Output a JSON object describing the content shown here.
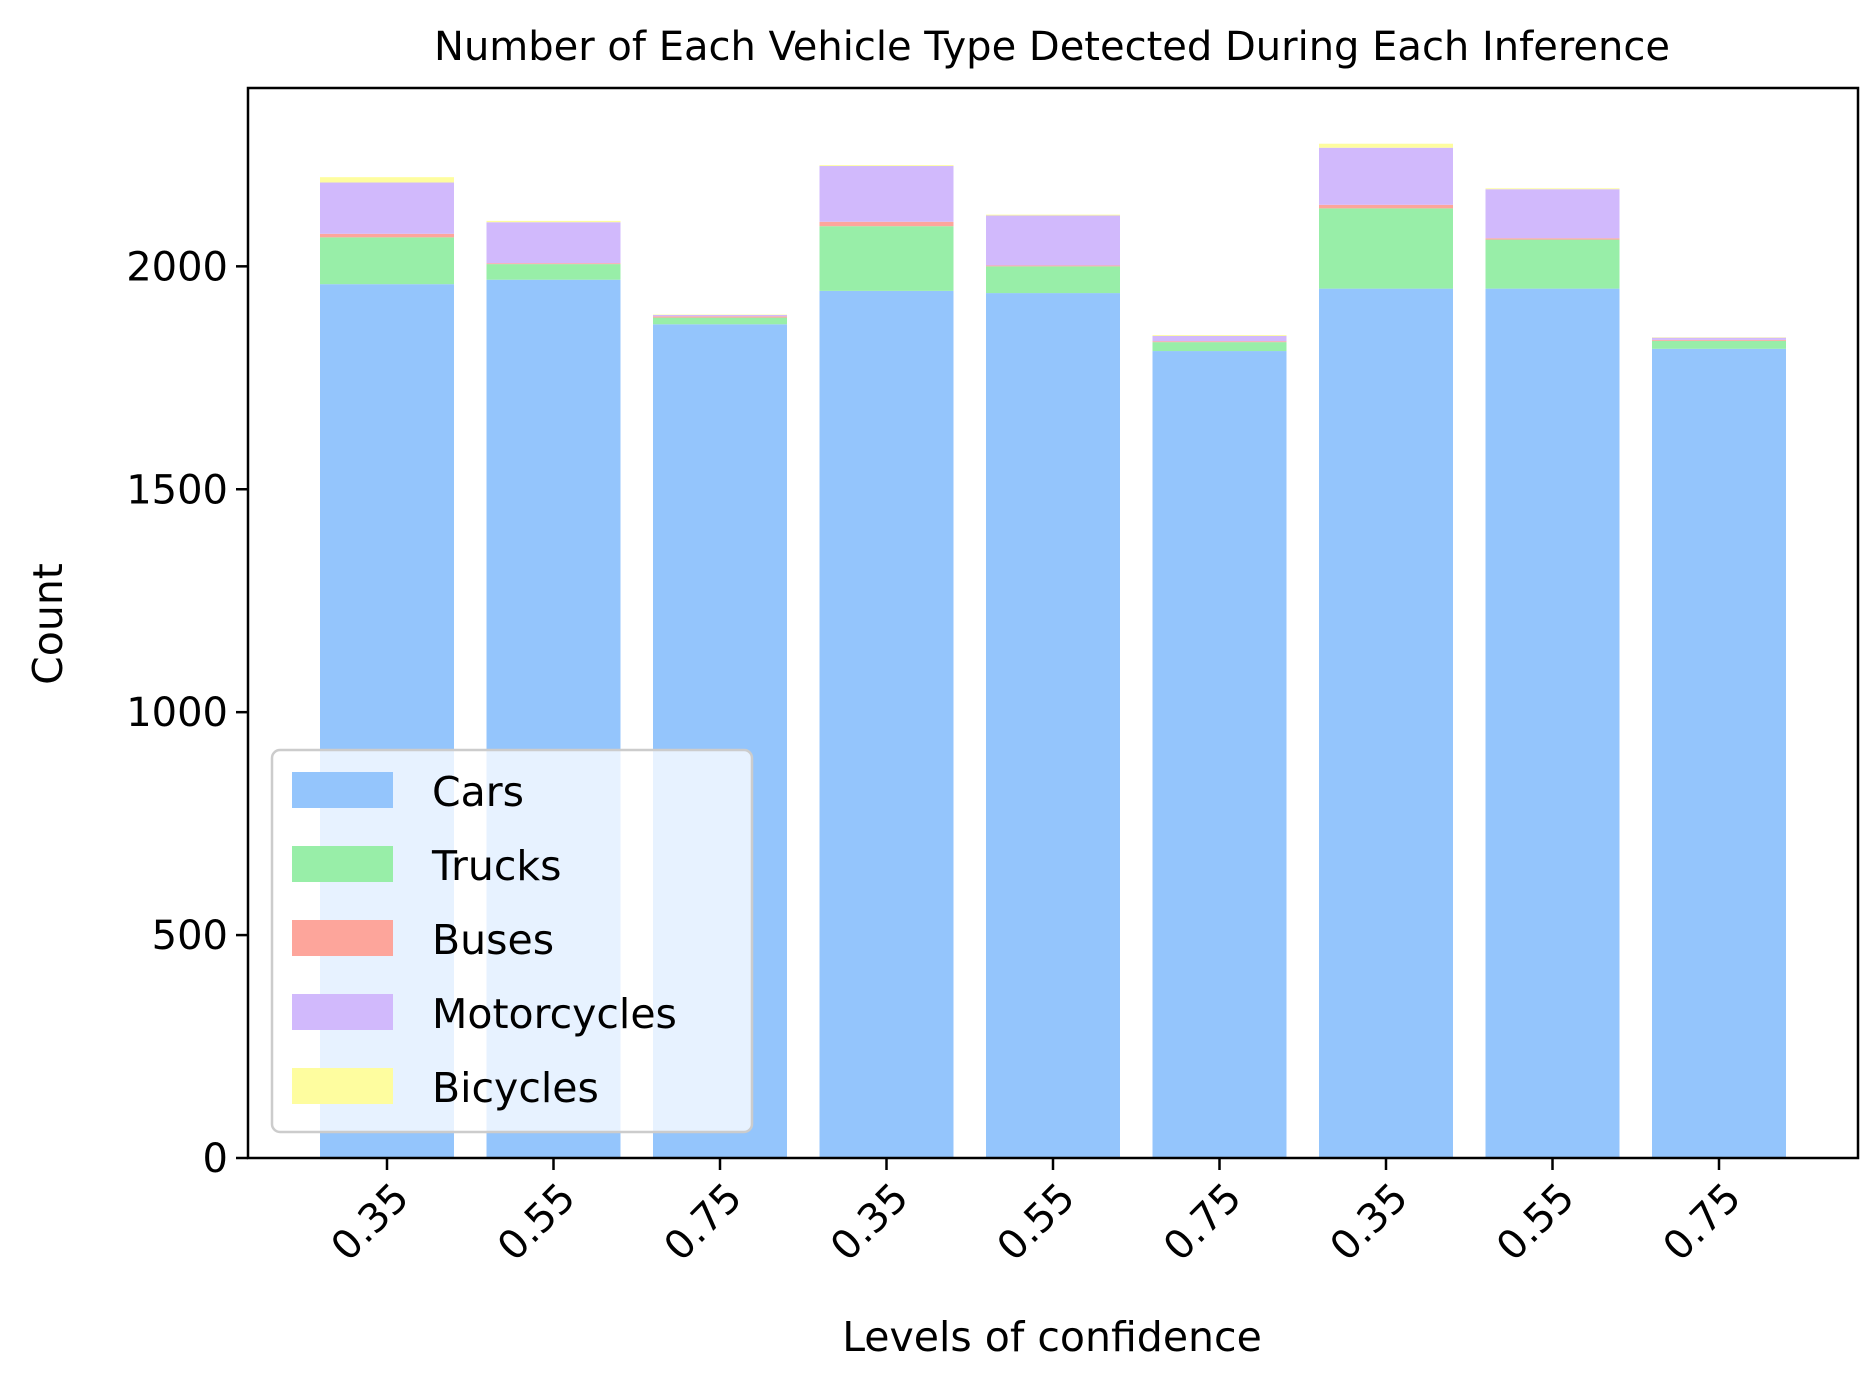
{
  "chart_data": {
    "type": "bar",
    "stacked": true,
    "title": "Number of Each Vehicle Type Detected During Each Inference",
    "xlabel": "Levels of confidence",
    "ylabel": "Count",
    "ylim": [
      0,
      2400
    ],
    "yticks": [
      0,
      500,
      1000,
      1500,
      2000
    ],
    "categories": [
      "0.35",
      "0.55",
      "0.75",
      "0.35",
      "0.55",
      "0.75",
      "0.35",
      "0.55",
      "0.75"
    ],
    "grid": false,
    "legend_position": "lower-left",
    "series": [
      {
        "name": "Cars",
        "color": "#94c5fc",
        "values": [
          1960,
          1970,
          1870,
          1945,
          1940,
          1810,
          1950,
          1950,
          1815
        ]
      },
      {
        "name": "Trucks",
        "color": "#98eea8",
        "values": [
          105,
          35,
          15,
          145,
          60,
          20,
          180,
          110,
          18
        ]
      },
      {
        "name": "Buses",
        "color": "#fda59b",
        "values": [
          8,
          2,
          3,
          10,
          2,
          2,
          8,
          3,
          2
        ]
      },
      {
        "name": "Motorcycles",
        "color": "#d1b9fc",
        "values": [
          115,
          92,
          3,
          125,
          112,
          12,
          128,
          110,
          5
        ]
      },
      {
        "name": "Bicycles",
        "color": "#fefd9f",
        "values": [
          12,
          3,
          1,
          2,
          2,
          2,
          9,
          2,
          1
        ]
      }
    ]
  }
}
